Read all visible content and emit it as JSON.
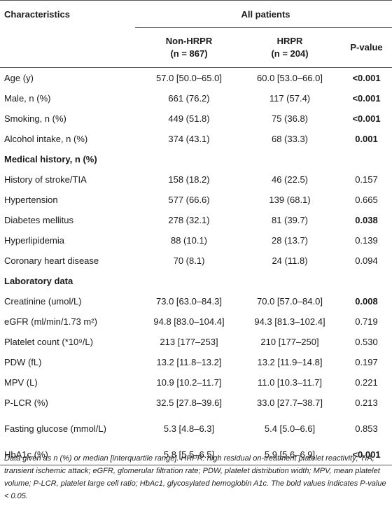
{
  "header": {
    "characteristics": "Characteristics",
    "all_patients": "All patients",
    "col_non_hrpr_label": "Non-HRPR",
    "col_non_hrpr_n": "(n = 867)",
    "col_hrpr_label": "HRPR",
    "col_hrpr_n": "(n = 204)",
    "col_p_label": "P-value"
  },
  "rows": [
    {
      "label": "Age (y)",
      "non_hrpr": "57.0 [50.0–65.0]",
      "hrpr": "60.0 [53.0–66.0]",
      "p": "<0.001",
      "bold": true
    },
    {
      "label": "Male, n (%)",
      "non_hrpr": "661 (76.2)",
      "hrpr": "117 (57.4)",
      "p": "<0.001",
      "bold": true
    },
    {
      "label": "Smoking, n (%)",
      "non_hrpr": "449 (51.8)",
      "hrpr": "75 (36.8)",
      "p": "<0.001",
      "bold": true
    },
    {
      "label": "Alcohol intake, n (%)",
      "non_hrpr": "374 (43.1)",
      "hrpr": "68 (33.3)",
      "p": "0.001",
      "bold": true
    },
    {
      "label": "Medical history, n (%)",
      "section": true
    },
    {
      "label": "History of stroke/TIA",
      "non_hrpr": "158 (18.2)",
      "hrpr": "46 (22.5)",
      "p": "0.157",
      "bold": false
    },
    {
      "label": "Hypertension",
      "non_hrpr": "577 (66.6)",
      "hrpr": "139 (68.1)",
      "p": "0.665",
      "bold": false
    },
    {
      "label": "Diabetes mellitus",
      "non_hrpr": "278 (32.1)",
      "hrpr": "81 (39.7)",
      "p": "0.038",
      "bold": true
    },
    {
      "label": "Hyperlipidemia",
      "non_hrpr": "88 (10.1)",
      "hrpr": "28 (13.7)",
      "p": "0.139",
      "bold": false
    },
    {
      "label": "Coronary heart disease",
      "non_hrpr": "70 (8.1)",
      "hrpr": "24 (11.8)",
      "p": "0.094",
      "bold": false
    },
    {
      "label": "Laboratory data",
      "section": true
    },
    {
      "label": "Creatinine (umol/L)",
      "non_hrpr": "73.0 [63.0–84.3]",
      "hrpr": "70.0 [57.0–84.0]",
      "p": "0.008",
      "bold": true
    },
    {
      "label": "eGFR (ml/min/1.73 m²)",
      "non_hrpr": "94.8 [83.0–104.4]",
      "hrpr": "94.3 [81.3–102.4]",
      "p": "0.719",
      "bold": false
    },
    {
      "label": "Platelet count (*10⁹/L)",
      "non_hrpr": "213 [177–253]",
      "hrpr": "210 [177–250]",
      "p": "0.530",
      "bold": false
    },
    {
      "label": "PDW (fL)",
      "non_hrpr": "13.2 [11.8–13.2]",
      "hrpr": "13.2 [11.9–14.8]",
      "p": "0.197",
      "bold": false
    },
    {
      "label": "MPV (L)",
      "non_hrpr": "10.9 [10.2–11.7]",
      "hrpr": "11.0 [10.3–11.7]",
      "p": "0.221",
      "bold": false
    },
    {
      "label": "P-LCR (%)",
      "non_hrpr": "32.5 [27.8–39.6]",
      "hrpr": "33.0 [27.7–38.7]",
      "p": "0.213",
      "bold": false
    },
    {
      "label": "Fasting glucose (mmol/L)",
      "non_hrpr": "5.3 [4.8–6.3]",
      "hrpr": "5.4 [5.0–6.6]",
      "p": "0.853",
      "bold": false,
      "tall": true
    },
    {
      "label": "HbA1c (%)",
      "non_hrpr": "5.8 [5.5–6.5]",
      "hrpr": "5.9 [5.6–6.9]",
      "p": "<0.001",
      "bold": true
    }
  ],
  "footnote": "Data given as n (%) or median [interquartile range]. HRPR: high residual on-treatment platelet reactivity; TIA, transient ischemic attack; eGFR, glomerular filtration rate; PDW, platelet distribution width; MPV, mean platelet volume; P-LCR, platelet large cell ratio; HbAc1, glycosylated hemoglobin A1c. The bold values indicates P-value < 0.05."
}
